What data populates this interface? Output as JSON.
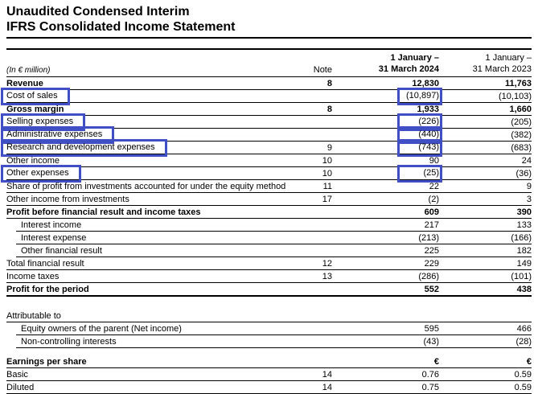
{
  "title": {
    "line1": "Unaudited Condensed Interim",
    "line2": "IFRS Consolidated Income Statement"
  },
  "annotation": {
    "color": "#4050C4",
    "meaning": "highlight-box"
  },
  "table": {
    "unit_label": "(In € million)",
    "headers": {
      "note": "Note",
      "period_2024_line1": "1 January –",
      "period_2024_line2": "31 March 2024",
      "period_2023_line1": "1 January –",
      "period_2023_line2": "31 March 2023"
    },
    "rows": [
      {
        "label": "Revenue",
        "note": "8",
        "v2024": "12,830",
        "v2023": "11,763",
        "bold": true
      },
      {
        "label": "Cost of sales",
        "note": "",
        "v2024": "(10,897)",
        "v2023": "(10,103)",
        "label_box": true,
        "value_box": true
      },
      {
        "label": "Gross margin",
        "note": "8",
        "v2024": "1,933",
        "v2023": "1,660",
        "bold": true
      },
      {
        "label": "Selling expenses",
        "note": "",
        "v2024": "(226)",
        "v2023": "(205)",
        "label_box": true,
        "value_box": true
      },
      {
        "label": "Administrative expenses",
        "note": "",
        "v2024": "(440)",
        "v2023": "(382)",
        "label_box": true,
        "value_box": true
      },
      {
        "label": "Research and development expenses",
        "note": "9",
        "v2024": "(743)",
        "v2023": "(683)",
        "label_box": true,
        "value_box": true
      },
      {
        "label": "Other income",
        "note": "10",
        "v2024": "90",
        "v2023": "24"
      },
      {
        "label": "Other expenses",
        "note": "10",
        "v2024": "(25)",
        "v2023": "(36)",
        "label_box": true,
        "value_box": true
      },
      {
        "label": "Share of profit from investments accounted for under the equity method",
        "note": "11",
        "v2024": "22",
        "v2023": "9"
      },
      {
        "label": "Other income from investments",
        "note": "17",
        "v2024": "(2)",
        "v2023": "3"
      },
      {
        "label": "Profit before financial result and income taxes",
        "note": "",
        "v2024": "609",
        "v2023": "390",
        "bold": true
      },
      {
        "label": "Interest income",
        "note": "",
        "v2024": "217",
        "v2023": "133",
        "indent": true
      },
      {
        "label": "Interest expense",
        "note": "",
        "v2024": "(213)",
        "v2023": "(166)",
        "indent": true
      },
      {
        "label": "Other financial result",
        "note": "",
        "v2024": "225",
        "v2023": "182",
        "indent": true
      },
      {
        "label": "Total financial result",
        "note": "12",
        "v2024": "229",
        "v2023": "149"
      },
      {
        "label": "Income taxes",
        "note": "13",
        "v2024": "(286)",
        "v2023": "(101)"
      },
      {
        "label": "Profit for the period",
        "note": "",
        "v2024": "552",
        "v2023": "438",
        "bold": true,
        "thick": true
      },
      {
        "spacer": "spacer1"
      },
      {
        "label": "Attributable to",
        "note": "",
        "v2024": "",
        "v2023": ""
      },
      {
        "label": "Equity owners of the parent (Net income)",
        "note": "",
        "v2024": "595",
        "v2023": "466",
        "indent": true
      },
      {
        "label": "Non-controlling interests",
        "note": "",
        "v2024": "(43)",
        "v2023": "(28)",
        "indent": true
      },
      {
        "spacer": "spacer2"
      },
      {
        "label": "Earnings per share",
        "note": "",
        "v2024": "€",
        "v2023": "€",
        "bold": true
      },
      {
        "label": "Basic",
        "note": "14",
        "v2024": "0.76",
        "v2023": "0.59"
      },
      {
        "label": "Diluted",
        "note": "14",
        "v2024": "0.75",
        "v2023": "0.59"
      }
    ]
  }
}
